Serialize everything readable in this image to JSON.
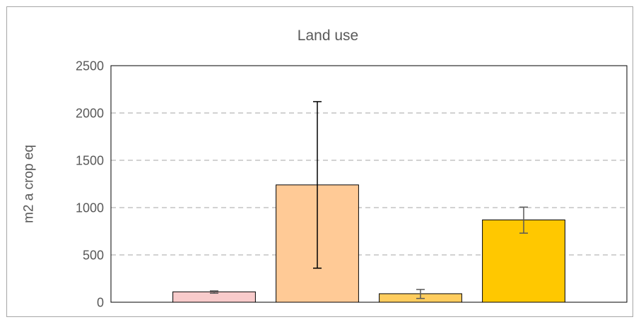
{
  "chart_data": {
    "type": "bar",
    "title": "Land use",
    "xlabel": "",
    "ylabel": "m2 a crop eq",
    "ylim": [
      0,
      2500
    ],
    "yticks": [
      "0",
      "500",
      "1000",
      "1500",
      "2000",
      "2500"
    ],
    "grid": true,
    "legend": "none",
    "categories": [
      "",
      "",
      "",
      ""
    ],
    "values": [
      110,
      1240,
      90,
      870
    ],
    "error_low": [
      95,
      360,
      40,
      730
    ],
    "error_high": [
      120,
      2120,
      135,
      1005
    ],
    "colors": [
      "#f8cbcb",
      "#ffca96",
      "#ffcd5f",
      "#ffc800"
    ],
    "error_colors": [
      "#595959",
      "#000000",
      "#595959",
      "#595959"
    ]
  }
}
